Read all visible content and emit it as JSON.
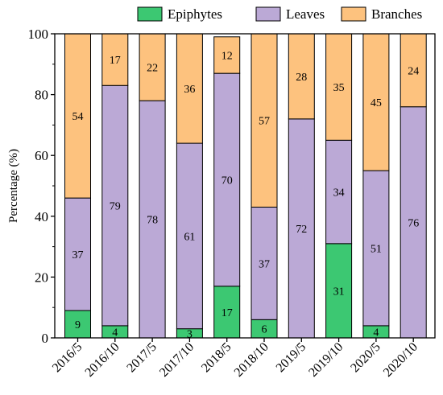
{
  "chart_data": {
    "type": "bar",
    "stacked": true,
    "ylabel": "Percentage (%)",
    "xlabel": "",
    "ylim": [
      0,
      100
    ],
    "yticks": [
      0,
      20,
      40,
      60,
      80,
      100
    ],
    "legend_position": "top",
    "categories": [
      "2016/5",
      "2016/10",
      "2017/5",
      "2017/10",
      "2018/5",
      "2018/10",
      "2019/5",
      "2019/10",
      "2020/5",
      "2020/10"
    ],
    "series": [
      {
        "name": "Epiphytes",
        "color": "#3cc872",
        "values": [
          9,
          4,
          0,
          3,
          17,
          6,
          0,
          31,
          4,
          0
        ],
        "labels": [
          "9",
          "4",
          "",
          "3",
          "17",
          "6",
          "",
          "31",
          "4",
          ""
        ]
      },
      {
        "name": "Leaves",
        "color": "#bba9d6",
        "values": [
          37,
          79,
          78,
          61,
          70,
          37,
          72,
          34,
          51,
          76
        ],
        "labels": [
          "37",
          "79",
          "78",
          "61",
          "70",
          "37",
          "72",
          "34",
          "51",
          "76"
        ]
      },
      {
        "name": "Branches",
        "color": "#fdc27e",
        "values": [
          54,
          17,
          22,
          36,
          12,
          57,
          28,
          35,
          45,
          24
        ],
        "labels": [
          "54",
          "17",
          "22",
          "36",
          "12",
          "57",
          "28",
          "35",
          "45",
          "24"
        ]
      }
    ]
  }
}
